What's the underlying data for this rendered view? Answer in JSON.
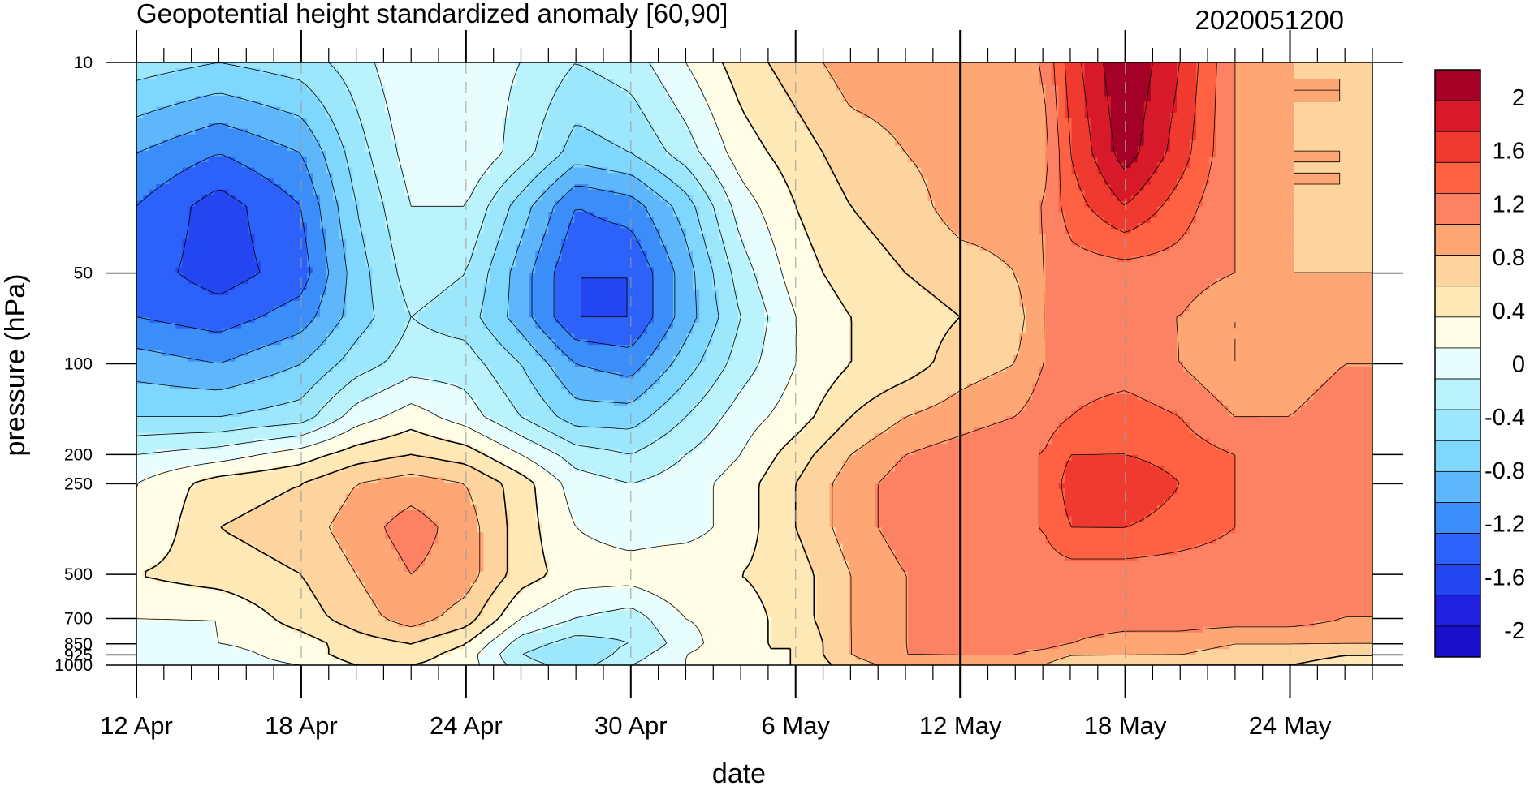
{
  "chart_data": {
    "type": "heatmap",
    "title": "Geopotential height standardized anomaly [60,90]",
    "subtitle": "2020051200",
    "xlabel": "date",
    "ylabel": "pressure (hPa)",
    "x_ticks": [
      "12 Apr",
      "18 Apr",
      "24 Apr",
      "30 Apr",
      "6 May",
      "12 May",
      "18 May",
      "24 May"
    ],
    "x_range_days": [
      0,
      45
    ],
    "y_ticks": [
      10,
      50,
      100,
      200,
      250,
      500,
      700,
      850,
      925,
      1000
    ],
    "y_scale": "log",
    "y_reversed": true,
    "marked_date": "12 May",
    "colorbar_labels": [
      "2",
      "1.6",
      "1.2",
      "0.8",
      "0.4",
      "0",
      "-0.4",
      "-0.8",
      "-1.2",
      "-1.6",
      "-2"
    ],
    "colorbar_colors": [
      "#a50026",
      "#d7192a",
      "#f03a30",
      "#ff6243",
      "#fd8263",
      "#fea775",
      "#fdd49e",
      "#fee9b6",
      "#fffde6",
      "#e8fdfd",
      "#baf3fc",
      "#9de7fc",
      "#80d7fd",
      "#5fb7fb",
      "#3b8dfa",
      "#2c62fa",
      "#2446f0",
      "#2020e0",
      "#1a10cc"
    ],
    "grid": "dashed vertical lines at labeled dates",
    "contour_field": {
      "levels": [
        -2.1,
        -1.9,
        -1.7,
        -1.5,
        -1.3,
        -1.1,
        -0.9,
        -0.7,
        -0.5,
        -0.3,
        -0.1,
        0.1,
        0.3,
        0.5,
        0.7,
        0.9,
        1.1,
        1.3,
        1.5,
        1.7
      ],
      "x_days": [
        0,
        3,
        6,
        8,
        10,
        12,
        14,
        16,
        18,
        20,
        22,
        24,
        26,
        28,
        30,
        32,
        33,
        34,
        36,
        38,
        40,
        42,
        44,
        45
      ],
      "pressure": [
        10,
        20,
        30,
        50,
        70,
        100,
        150,
        200,
        250,
        350,
        500,
        700,
        850,
        925,
        1000
      ],
      "values": [
        [
          -0.8,
          -0.9,
          -0.8,
          -0.6,
          -0.3,
          -0.4,
          -0.5,
          -0.7,
          -0.6,
          -0.3,
          0.0,
          0.2,
          0.4,
          0.4,
          0.4,
          0.5,
          0.5,
          1.0,
          1.5,
          1.1,
          0.5,
          0.3,
          0.3,
          0.2
        ],
        [
          -1.3,
          -1.5,
          -1.3,
          -0.8,
          -0.4,
          -0.3,
          -0.6,
          -1.0,
          -0.9,
          -0.6,
          -0.2,
          0.0,
          0.2,
          0.3,
          0.4,
          0.4,
          0.4,
          0.9,
          1.4,
          1.0,
          0.5,
          0.3,
          0.3,
          0.2
        ],
        [
          -1.5,
          -1.8,
          -1.5,
          -0.9,
          -0.5,
          -0.5,
          -1.0,
          -1.5,
          -1.4,
          -1.0,
          -0.4,
          -0.1,
          0.1,
          0.2,
          0.4,
          0.4,
          0.5,
          0.8,
          1.1,
          0.8,
          0.5,
          0.3,
          0.3,
          0.3
        ],
        [
          -1.6,
          -1.8,
          -1.6,
          -1.0,
          -0.6,
          -0.7,
          -1.2,
          -1.7,
          -1.7,
          -1.2,
          -0.6,
          -0.2,
          0.0,
          0.1,
          0.2,
          0.3,
          0.5,
          0.6,
          0.6,
          0.6,
          0.5,
          0.3,
          0.3,
          0.3
        ],
        [
          -1.5,
          -1.6,
          -1.4,
          -1.0,
          -0.7,
          -0.8,
          -1.2,
          -1.7,
          -1.7,
          -1.2,
          -0.7,
          -0.3,
          -0.1,
          0.0,
          0.1,
          0.2,
          0.5,
          0.6,
          0.5,
          0.5,
          0.3,
          0.3,
          0.4,
          0.4
        ],
        [
          -1.2,
          -1.3,
          -1.1,
          -0.8,
          -0.6,
          -0.6,
          -0.9,
          -1.3,
          -1.4,
          -1.0,
          -0.6,
          -0.3,
          -0.1,
          0.0,
          0.2,
          0.3,
          0.5,
          0.6,
          0.6,
          0.5,
          0.3,
          0.4,
          0.5,
          0.5
        ],
        [
          -0.9,
          -0.9,
          -0.8,
          -0.4,
          -0.2,
          -0.4,
          -0.7,
          -1.0,
          -1.0,
          -0.7,
          -0.4,
          -0.2,
          0.1,
          0.3,
          0.4,
          0.5,
          0.6,
          0.7,
          0.8,
          0.7,
          0.5,
          0.5,
          0.6,
          0.6
        ],
        [
          -0.5,
          -0.4,
          -0.2,
          0.0,
          0.1,
          0.0,
          -0.3,
          -0.6,
          -0.7,
          -0.5,
          -0.3,
          0.0,
          0.3,
          0.5,
          0.6,
          0.7,
          0.7,
          0.9,
          0.9,
          0.8,
          0.7,
          0.7,
          0.7,
          0.7
        ],
        [
          -0.3,
          0.0,
          0.1,
          0.3,
          0.4,
          0.3,
          0.0,
          -0.4,
          -0.5,
          -0.4,
          -0.2,
          0.1,
          0.4,
          0.6,
          0.7,
          0.7,
          0.7,
          1.0,
          1.1,
          0.9,
          0.7,
          0.7,
          0.7,
          0.7
        ],
        [
          -0.3,
          0.1,
          0.2,
          0.4,
          0.6,
          0.4,
          0.0,
          -0.3,
          -0.4,
          -0.4,
          -0.2,
          0.1,
          0.4,
          0.6,
          0.7,
          0.7,
          0.7,
          0.9,
          0.9,
          0.8,
          0.7,
          0.7,
          0.7,
          0.7
        ],
        [
          -0.1,
          0.0,
          0.1,
          0.3,
          0.5,
          0.4,
          0.0,
          -0.2,
          -0.2,
          -0.1,
          -0.1,
          0.0,
          0.3,
          0.5,
          0.6,
          0.6,
          0.6,
          0.6,
          0.6,
          0.6,
          0.6,
          0.6,
          0.6,
          0.6
        ],
        [
          -0.3,
          -0.3,
          0.0,
          0.2,
          0.4,
          0.2,
          -0.3,
          -0.5,
          -0.6,
          -0.3,
          -0.2,
          0.0,
          0.3,
          0.5,
          0.6,
          0.6,
          0.6,
          0.6,
          0.6,
          0.6,
          0.6,
          0.6,
          0.5,
          0.5
        ],
        [
          -0.4,
          -0.3,
          -0.2,
          0.0,
          0.1,
          -0.1,
          -0.6,
          -0.8,
          -0.7,
          -0.4,
          -0.1,
          -0.1,
          0.3,
          0.5,
          0.6,
          0.6,
          0.6,
          0.5,
          0.4,
          0.4,
          0.3,
          0.3,
          0.3,
          0.3
        ],
        [
          -0.4,
          -0.4,
          -0.2,
          0.0,
          0.0,
          -0.2,
          -0.7,
          -0.9,
          -0.6,
          -0.3,
          -0.1,
          -0.1,
          0.3,
          0.5,
          0.5,
          0.5,
          0.4,
          0.3,
          0.3,
          0.3,
          0.2,
          0.2,
          0.1,
          0.1
        ],
        [
          -0.4,
          -0.4,
          -0.3,
          -0.1,
          -0.1,
          -0.2,
          -0.6,
          -0.8,
          -0.5,
          -0.3,
          -0.1,
          -0.1,
          0.2,
          0.4,
          0.4,
          0.4,
          0.3,
          0.2,
          0.2,
          0.1,
          0.1,
          0.1,
          0.0,
          0.0
        ]
      ]
    }
  }
}
